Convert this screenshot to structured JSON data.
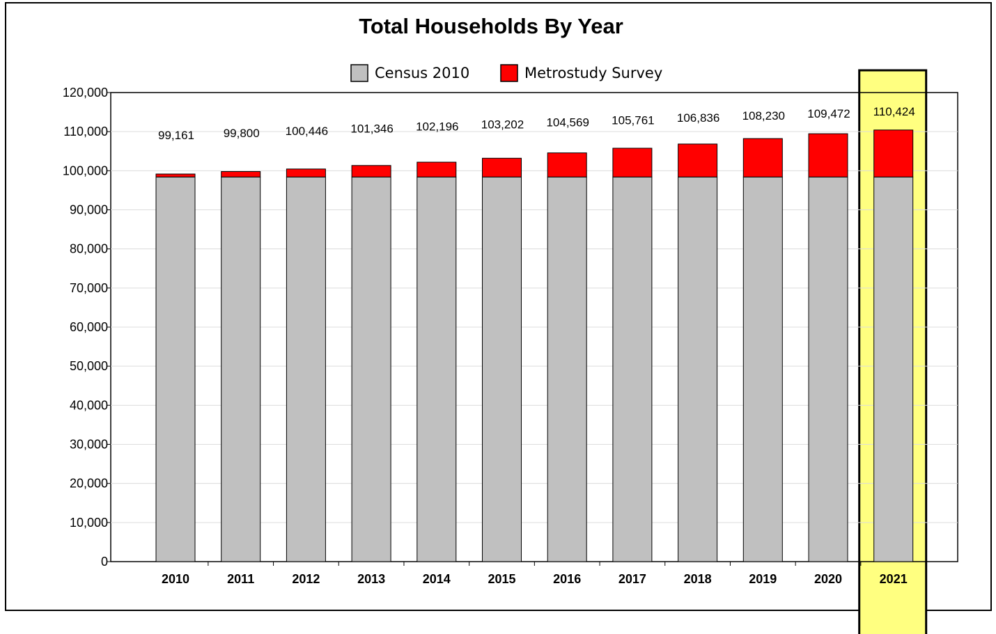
{
  "chart_data": {
    "type": "bar",
    "stacked": true,
    "title": "Total Households By Year",
    "xlabel": "",
    "ylabel": "",
    "ylim": [
      0,
      120000
    ],
    "yticks": [
      0,
      10000,
      20000,
      30000,
      40000,
      50000,
      60000,
      70000,
      80000,
      90000,
      100000,
      110000,
      120000
    ],
    "ytick_labels": [
      "0",
      "10,000",
      "20,000",
      "30,000",
      "40,000",
      "50,000",
      "60,000",
      "70,000",
      "80,000",
      "90,000",
      "100,000",
      "110,000",
      "120,000"
    ],
    "categories": [
      "2010",
      "2011",
      "2012",
      "2013",
      "2014",
      "2015",
      "2016",
      "2017",
      "2018",
      "2019",
      "2020",
      "2021"
    ],
    "series": [
      {
        "name": "Census 2010",
        "color": "#c0c0c0",
        "values": [
          98400,
          98400,
          98400,
          98400,
          98400,
          98400,
          98400,
          98400,
          98400,
          98400,
          98400,
          98400
        ]
      },
      {
        "name": "Metrostudy Survey",
        "color": "#ff0000",
        "values": [
          761,
          1400,
          2046,
          2946,
          3796,
          4802,
          6169,
          7361,
          8436,
          9830,
          11072,
          12024
        ]
      }
    ],
    "totals": [
      99161,
      99800,
      100446,
      101346,
      102196,
      103202,
      104569,
      105761,
      106836,
      108230,
      109472,
      110424
    ],
    "total_labels": [
      "99,161",
      "99,800",
      "100,446",
      "101,346",
      "102,196",
      "103,202",
      "104,569",
      "105,761",
      "106,836",
      "108,230",
      "109,472",
      "110,424"
    ],
    "highlight_category": "2021",
    "highlight_color": "#ffff80",
    "grid": true,
    "legend_position": "top"
  }
}
